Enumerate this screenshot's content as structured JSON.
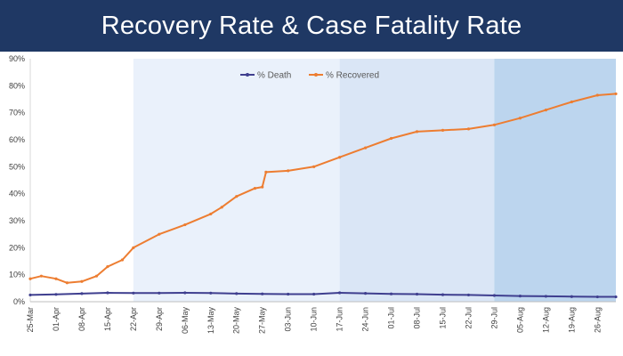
{
  "header": {
    "title": "Recovery Rate & Case Fatality Rate"
  },
  "chart_data": {
    "type": "line",
    "title": "Recovery Rate & Case Fatality Rate",
    "xlabel": "",
    "ylabel": "",
    "ylim": [
      0,
      90
    ],
    "y_ticks": [
      "0%",
      "10%",
      "20%",
      "30%",
      "40%",
      "50%",
      "60%",
      "70%",
      "80%",
      "90%"
    ],
    "x_ticks": [
      "25-Mar",
      "01-Apr",
      "08-Apr",
      "15-Apr",
      "22-Apr",
      "29-Apr",
      "06-May",
      "13-May",
      "20-May",
      "27-May",
      "03-Jun",
      "10-Jun",
      "17-Jun",
      "24-Jun",
      "01-Jul",
      "08-Jul",
      "15-Jul",
      "22-Jul",
      "29-Jul",
      "05-Aug",
      "12-Aug",
      "19-Aug",
      "26-Aug"
    ],
    "shaded_periods": [
      {
        "from": "22-Apr",
        "to": "17-Jun",
        "color": "#eaf1fb"
      },
      {
        "from": "17-Jun",
        "to": "29-Jul",
        "color": "#dae6f6"
      },
      {
        "from": "29-Jul",
        "to": "31-Aug",
        "color": "#bcd5ee"
      }
    ],
    "legend": {
      "position": "top-center"
    },
    "grid": false,
    "series": [
      {
        "name": "% Death",
        "color": "#3f3f8f",
        "x": [
          "25-Mar",
          "01-Apr",
          "08-Apr",
          "15-Apr",
          "22-Apr",
          "29-Apr",
          "06-May",
          "13-May",
          "20-May",
          "27-May",
          "03-Jun",
          "10-Jun",
          "17-Jun",
          "24-Jun",
          "01-Jul",
          "08-Jul",
          "15-Jul",
          "22-Jul",
          "29-Jul",
          "05-Aug",
          "12-Aug",
          "19-Aug",
          "26-Aug",
          "31-Aug"
        ],
        "values": [
          2.5,
          2.7,
          3.0,
          3.3,
          3.2,
          3.2,
          3.3,
          3.2,
          3.0,
          2.9,
          2.8,
          2.8,
          3.3,
          3.1,
          2.9,
          2.8,
          2.6,
          2.5,
          2.3,
          2.1,
          2.0,
          1.9,
          1.8,
          1.8
        ]
      },
      {
        "name": "% Recovered",
        "color": "#ed7d31",
        "x": [
          "25-Mar",
          "28-Mar",
          "01-Apr",
          "04-Apr",
          "08-Apr",
          "12-Apr",
          "15-Apr",
          "19-Apr",
          "22-Apr",
          "29-Apr",
          "06-May",
          "13-May",
          "16-May",
          "20-May",
          "25-May",
          "27-May",
          "28-May",
          "03-Jun",
          "10-Jun",
          "17-Jun",
          "24-Jun",
          "01-Jul",
          "08-Jul",
          "15-Jul",
          "22-Jul",
          "29-Jul",
          "05-Aug",
          "12-Aug",
          "19-Aug",
          "26-Aug",
          "31-Aug"
        ],
        "values": [
          8.5,
          9.5,
          8.5,
          7.0,
          7.5,
          9.5,
          13.0,
          15.5,
          20.0,
          25.0,
          28.5,
          32.5,
          35.0,
          39.0,
          42.0,
          42.5,
          48.0,
          48.5,
          50.0,
          53.5,
          57.0,
          60.5,
          63.0,
          63.5,
          64.0,
          65.5,
          68.0,
          71.0,
          74.0,
          76.5,
          77.0
        ]
      }
    ]
  }
}
